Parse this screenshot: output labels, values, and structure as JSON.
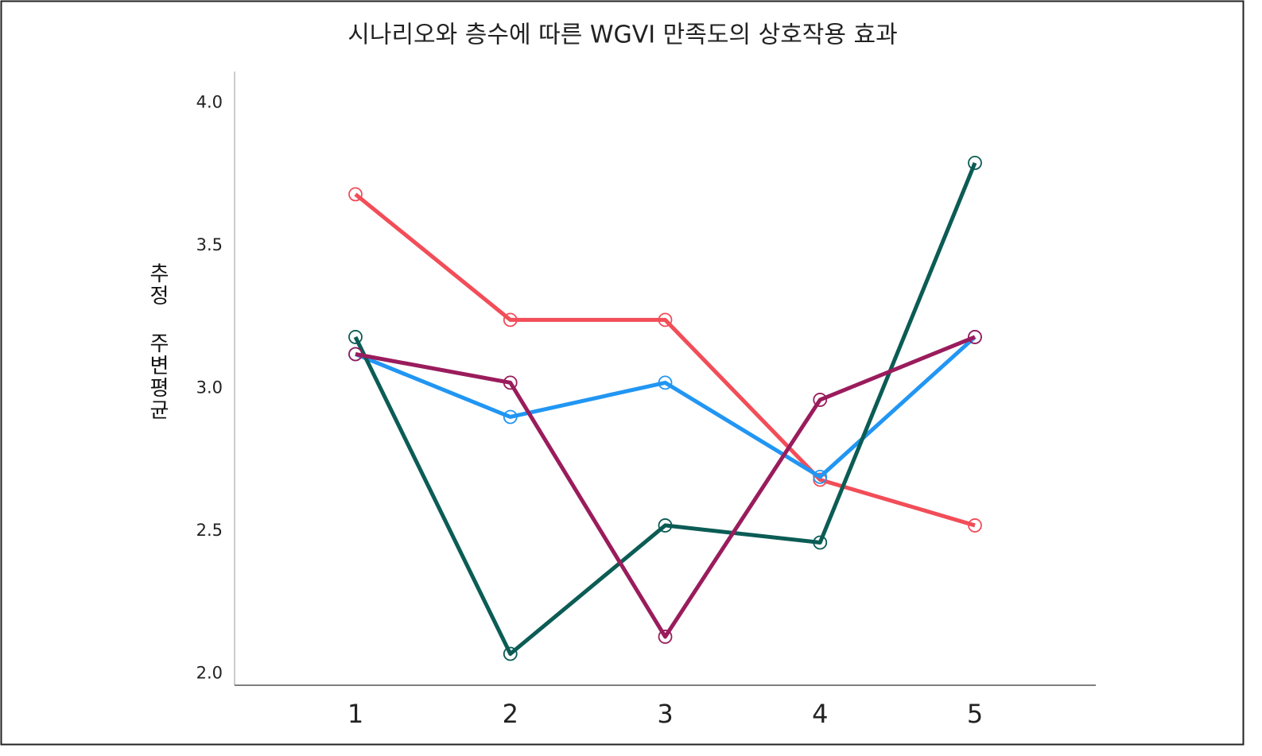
{
  "chart_data": {
    "type": "line",
    "title": "시나리오와 층수에 따른 WGVI 만족도의 상호작용 효과",
    "y_label": "추정 주변평균",
    "categories": [
      "1",
      "2",
      "3",
      "4",
      "5"
    ],
    "series": [
      {
        "color": "#f24d58",
        "values": [
          3.68,
          3.24,
          3.24,
          2.68,
          2.52
        ]
      },
      {
        "color": "#2196f3",
        "values": [
          3.12,
          2.9,
          3.02,
          2.69,
          3.18
        ]
      },
      {
        "color": "#0b5c55",
        "values": [
          3.18,
          2.07,
          2.52,
          2.46,
          3.79
        ]
      },
      {
        "color": "#9a1c5c",
        "values": [
          3.12,
          3.02,
          2.13,
          2.96,
          3.18
        ]
      }
    ],
    "ylim": [
      1.96,
      4.11
    ],
    "yticks": [
      {
        "value": 2,
        "label": "2.0"
      },
      2.5,
      {
        "value": 3,
        "label": "3.0"
      },
      3.5,
      {
        "value": 4,
        "label": "4.0"
      }
    ]
  }
}
